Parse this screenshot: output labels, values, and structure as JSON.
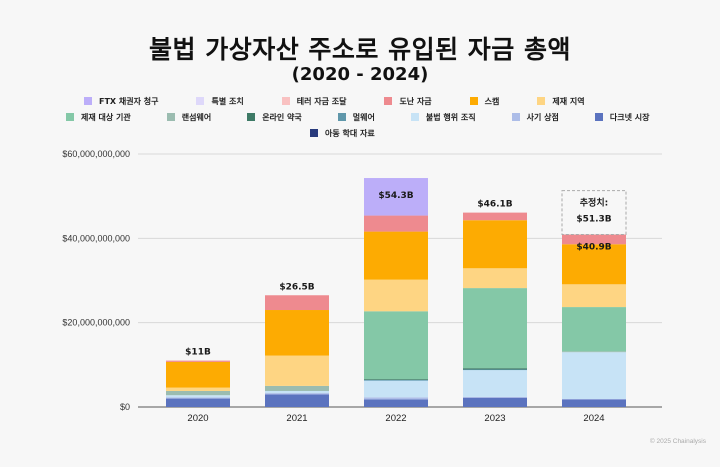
{
  "chart_data": {
    "type": "bar",
    "stacked": true,
    "title": "불법 가상자산 주소로 유입된 자금 총액",
    "subtitle": "(2020 - 2024)",
    "xlabel": "",
    "ylabel": "",
    "ylim": [
      0,
      60000000000
    ],
    "yticks": [
      0,
      20000000000,
      40000000000,
      60000000000
    ],
    "ytick_labels": [
      "$0",
      "$20,000,000,000",
      "$40,000,000,000",
      "$60,000,000,000"
    ],
    "grid": true,
    "legend_position": "top",
    "categories": [
      "2020",
      "2021",
      "2022",
      "2023",
      "2024"
    ],
    "series": [
      {
        "name": "다크넷 시장",
        "color": "#5b73bf",
        "values": [
          2.0,
          3.0,
          1.8,
          2.2,
          1.8
        ]
      },
      {
        "name": "사기 상점",
        "color": "#adbde8",
        "values": [
          0.3,
          0.3,
          0.5,
          0.2,
          0.1
        ]
      },
      {
        "name": "불법 행위 조직",
        "color": "#c7e3f6",
        "values": [
          0.5,
          0.5,
          4.0,
          6.4,
          11.1
        ]
      },
      {
        "name": "멀웨어",
        "color": "#5f97aa",
        "values": [
          0.0,
          0.0,
          0.1,
          0.1,
          0.0
        ]
      },
      {
        "name": "온라인 약국",
        "color": "#3e7a66",
        "values": [
          0.0,
          0.0,
          0.2,
          0.3,
          0.0
        ]
      },
      {
        "name": "랜섬웨어",
        "color": "#9bbcb0",
        "values": [
          1.0,
          1.2,
          0.0,
          0.0,
          0.2
        ]
      },
      {
        "name": "제재 대상 기관",
        "color": "#84c8a7",
        "values": [
          0.0,
          0.0,
          16.1,
          19.0,
          10.5
        ]
      },
      {
        "name": "제재 지역",
        "color": "#fed583",
        "values": [
          0.8,
          7.2,
          7.5,
          4.7,
          5.4
        ]
      },
      {
        "name": "스캠",
        "color": "#fdab02",
        "values": [
          6.1,
          10.8,
          11.4,
          11.4,
          9.5
        ]
      },
      {
        "name": "도난 자금",
        "color": "#ee8a8f",
        "values": [
          0.3,
          3.5,
          3.8,
          1.8,
          2.3
        ]
      },
      {
        "name": "테러 자금 조달",
        "color": "#f9c1c1",
        "values": [
          0.0,
          0.0,
          0.0,
          0.0,
          0.0
        ]
      },
      {
        "name": "특별 조치",
        "color": "#ded8fa",
        "values": [
          0.0,
          0.0,
          0.0,
          0.0,
          0.0
        ]
      },
      {
        "name": "FTX 채권자 청구",
        "color": "#bcaef9",
        "values": [
          0.0,
          0.0,
          8.9,
          0.0,
          0.0
        ]
      },
      {
        "name": "아동 학대 자료",
        "color": "#283a7c",
        "values": [
          0.0,
          0.0,
          0.0,
          0.0,
          0.0
        ]
      }
    ],
    "value_unit": "billion USD",
    "totals": [
      {
        "year": "2020",
        "value": 11.0,
        "label": "$11B"
      },
      {
        "year": "2021",
        "value": 26.5,
        "label": "$26.5B"
      },
      {
        "year": "2022",
        "value": 54.3,
        "label": "$54.3B"
      },
      {
        "year": "2023",
        "value": 46.1,
        "label": "$46.1B"
      },
      {
        "year": "2024",
        "value": 40.9,
        "label": "$40.9B"
      }
    ],
    "estimate": {
      "year": "2024",
      "value": 51.3,
      "label_line1": "추정치:",
      "label_line2": "$51.3B"
    }
  },
  "legend": {
    "rows": [
      [
        "FTX 채권자 청구",
        "특별 조치",
        "테러 자금 조달",
        "도난 자금",
        "스캠",
        "제재 지역"
      ],
      [
        "제재 대상 기관",
        "랜섬웨어",
        "온라인 약국",
        "멀웨어",
        "불법 행위 조직",
        "사기 상점",
        "다크넷 시장"
      ],
      [
        "아동 학대 자료"
      ]
    ]
  },
  "footer": {
    "copyright": "© 2025 Chainalysis"
  }
}
